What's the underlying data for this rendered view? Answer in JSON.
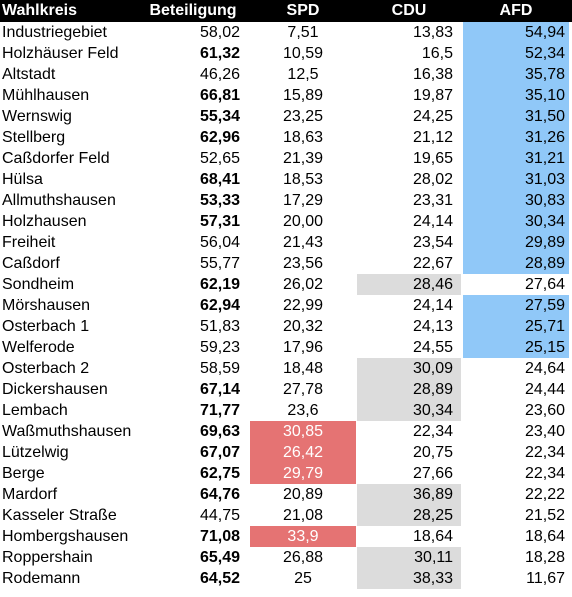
{
  "table": {
    "header": [
      "Wahlkreis",
      "Beteiligung",
      "SPD",
      "CDU",
      "AFD"
    ],
    "rows": [
      {
        "cells": [
          "Industriegebiet",
          "58,02",
          "7,51",
          "13,83",
          "54,94"
        ],
        "bold": false,
        "winner": 4
      },
      {
        "cells": [
          "Holzhäuser Feld",
          "61,32",
          "10,59",
          "16,5",
          "52,34"
        ],
        "bold": true,
        "winner": 4
      },
      {
        "cells": [
          "Altstadt",
          "46,26",
          "12,5",
          "16,38",
          "35,78"
        ],
        "bold": false,
        "winner": 4
      },
      {
        "cells": [
          "Mühlhausen",
          "66,81",
          "15,89",
          "19,87",
          "35,10"
        ],
        "bold": true,
        "winner": 4
      },
      {
        "cells": [
          "Wernswig",
          "55,34",
          "23,25",
          "24,25",
          "31,50"
        ],
        "bold": true,
        "winner": 4
      },
      {
        "cells": [
          "Stellberg",
          "62,96",
          "18,63",
          "21,12",
          "31,26"
        ],
        "bold": true,
        "winner": 4
      },
      {
        "cells": [
          "Caßdorfer Feld",
          "52,65",
          "21,39",
          "19,65",
          "31,21"
        ],
        "bold": false,
        "winner": 4
      },
      {
        "cells": [
          "Hülsa",
          "68,41",
          "18,53",
          "28,02",
          "31,03"
        ],
        "bold": true,
        "winner": 4
      },
      {
        "cells": [
          "Allmuthshausen",
          "53,33",
          "17,29",
          "23,31",
          "30,83"
        ],
        "bold": true,
        "winner": 4
      },
      {
        "cells": [
          "Holzhausen",
          "57,31",
          "20,00",
          "24,14",
          "30,34"
        ],
        "bold": true,
        "winner": 4
      },
      {
        "cells": [
          "Freiheit",
          "56,04",
          "21,43",
          "23,54",
          "29,89"
        ],
        "bold": false,
        "winner": 4
      },
      {
        "cells": [
          "Caßdorf",
          "55,77",
          "23,56",
          "22,67",
          "28,89"
        ],
        "bold": false,
        "winner": 4
      },
      {
        "cells": [
          "Sondheim",
          "62,19",
          "26,02",
          "28,46",
          "27,64"
        ],
        "bold": true,
        "winner": 3
      },
      {
        "cells": [
          "Mörshausen",
          "62,94",
          "22,99",
          "24,14",
          "27,59"
        ],
        "bold": true,
        "winner": 4
      },
      {
        "cells": [
          "Osterbach 1",
          "51,83",
          "20,32",
          "24,13",
          "25,71"
        ],
        "bold": false,
        "winner": 4
      },
      {
        "cells": [
          "Welferode",
          "59,23",
          "17,96",
          "24,55",
          "25,15"
        ],
        "bold": false,
        "winner": 4
      },
      {
        "cells": [
          "Osterbach 2",
          "58,59",
          "18,48",
          "30,09",
          "24,64"
        ],
        "bold": false,
        "winner": 3
      },
      {
        "cells": [
          "Dickershausen",
          "67,14",
          "27,78",
          "28,89",
          "24,44"
        ],
        "bold": true,
        "winner": 3
      },
      {
        "cells": [
          "Lembach",
          "71,77",
          "23,6",
          "30,34",
          "23,60"
        ],
        "bold": true,
        "winner": 3
      },
      {
        "cells": [
          "Waßmuthshausen",
          "69,63",
          "30,85",
          "22,34",
          "23,40"
        ],
        "bold": true,
        "winner": 2
      },
      {
        "cells": [
          "Lützelwig",
          "67,07",
          "26,42",
          "20,75",
          "22,34"
        ],
        "bold": true,
        "winner": 2
      },
      {
        "cells": [
          "Berge",
          "62,75",
          "29,79",
          "27,66",
          "22,34"
        ],
        "bold": true,
        "winner": 2
      },
      {
        "cells": [
          "Mardorf",
          "64,76",
          "20,89",
          "36,89",
          "22,22"
        ],
        "bold": true,
        "winner": 3
      },
      {
        "cells": [
          "Kasseler Straße",
          "44,75",
          "21,08",
          "28,25",
          "21,52"
        ],
        "bold": false,
        "winner": 3
      },
      {
        "cells": [
          "Hombergshausen",
          "71,08",
          "33,9",
          "18,64",
          "18,64"
        ],
        "bold": true,
        "winner": 2
      },
      {
        "cells": [
          "Roppershain",
          "65,49",
          "26,88",
          "30,11",
          "18,28"
        ],
        "bold": true,
        "winner": 3
      },
      {
        "cells": [
          "Rodemann",
          "64,52",
          "25",
          "38,33",
          "11,67"
        ],
        "bold": true,
        "winner": 3
      }
    ]
  }
}
